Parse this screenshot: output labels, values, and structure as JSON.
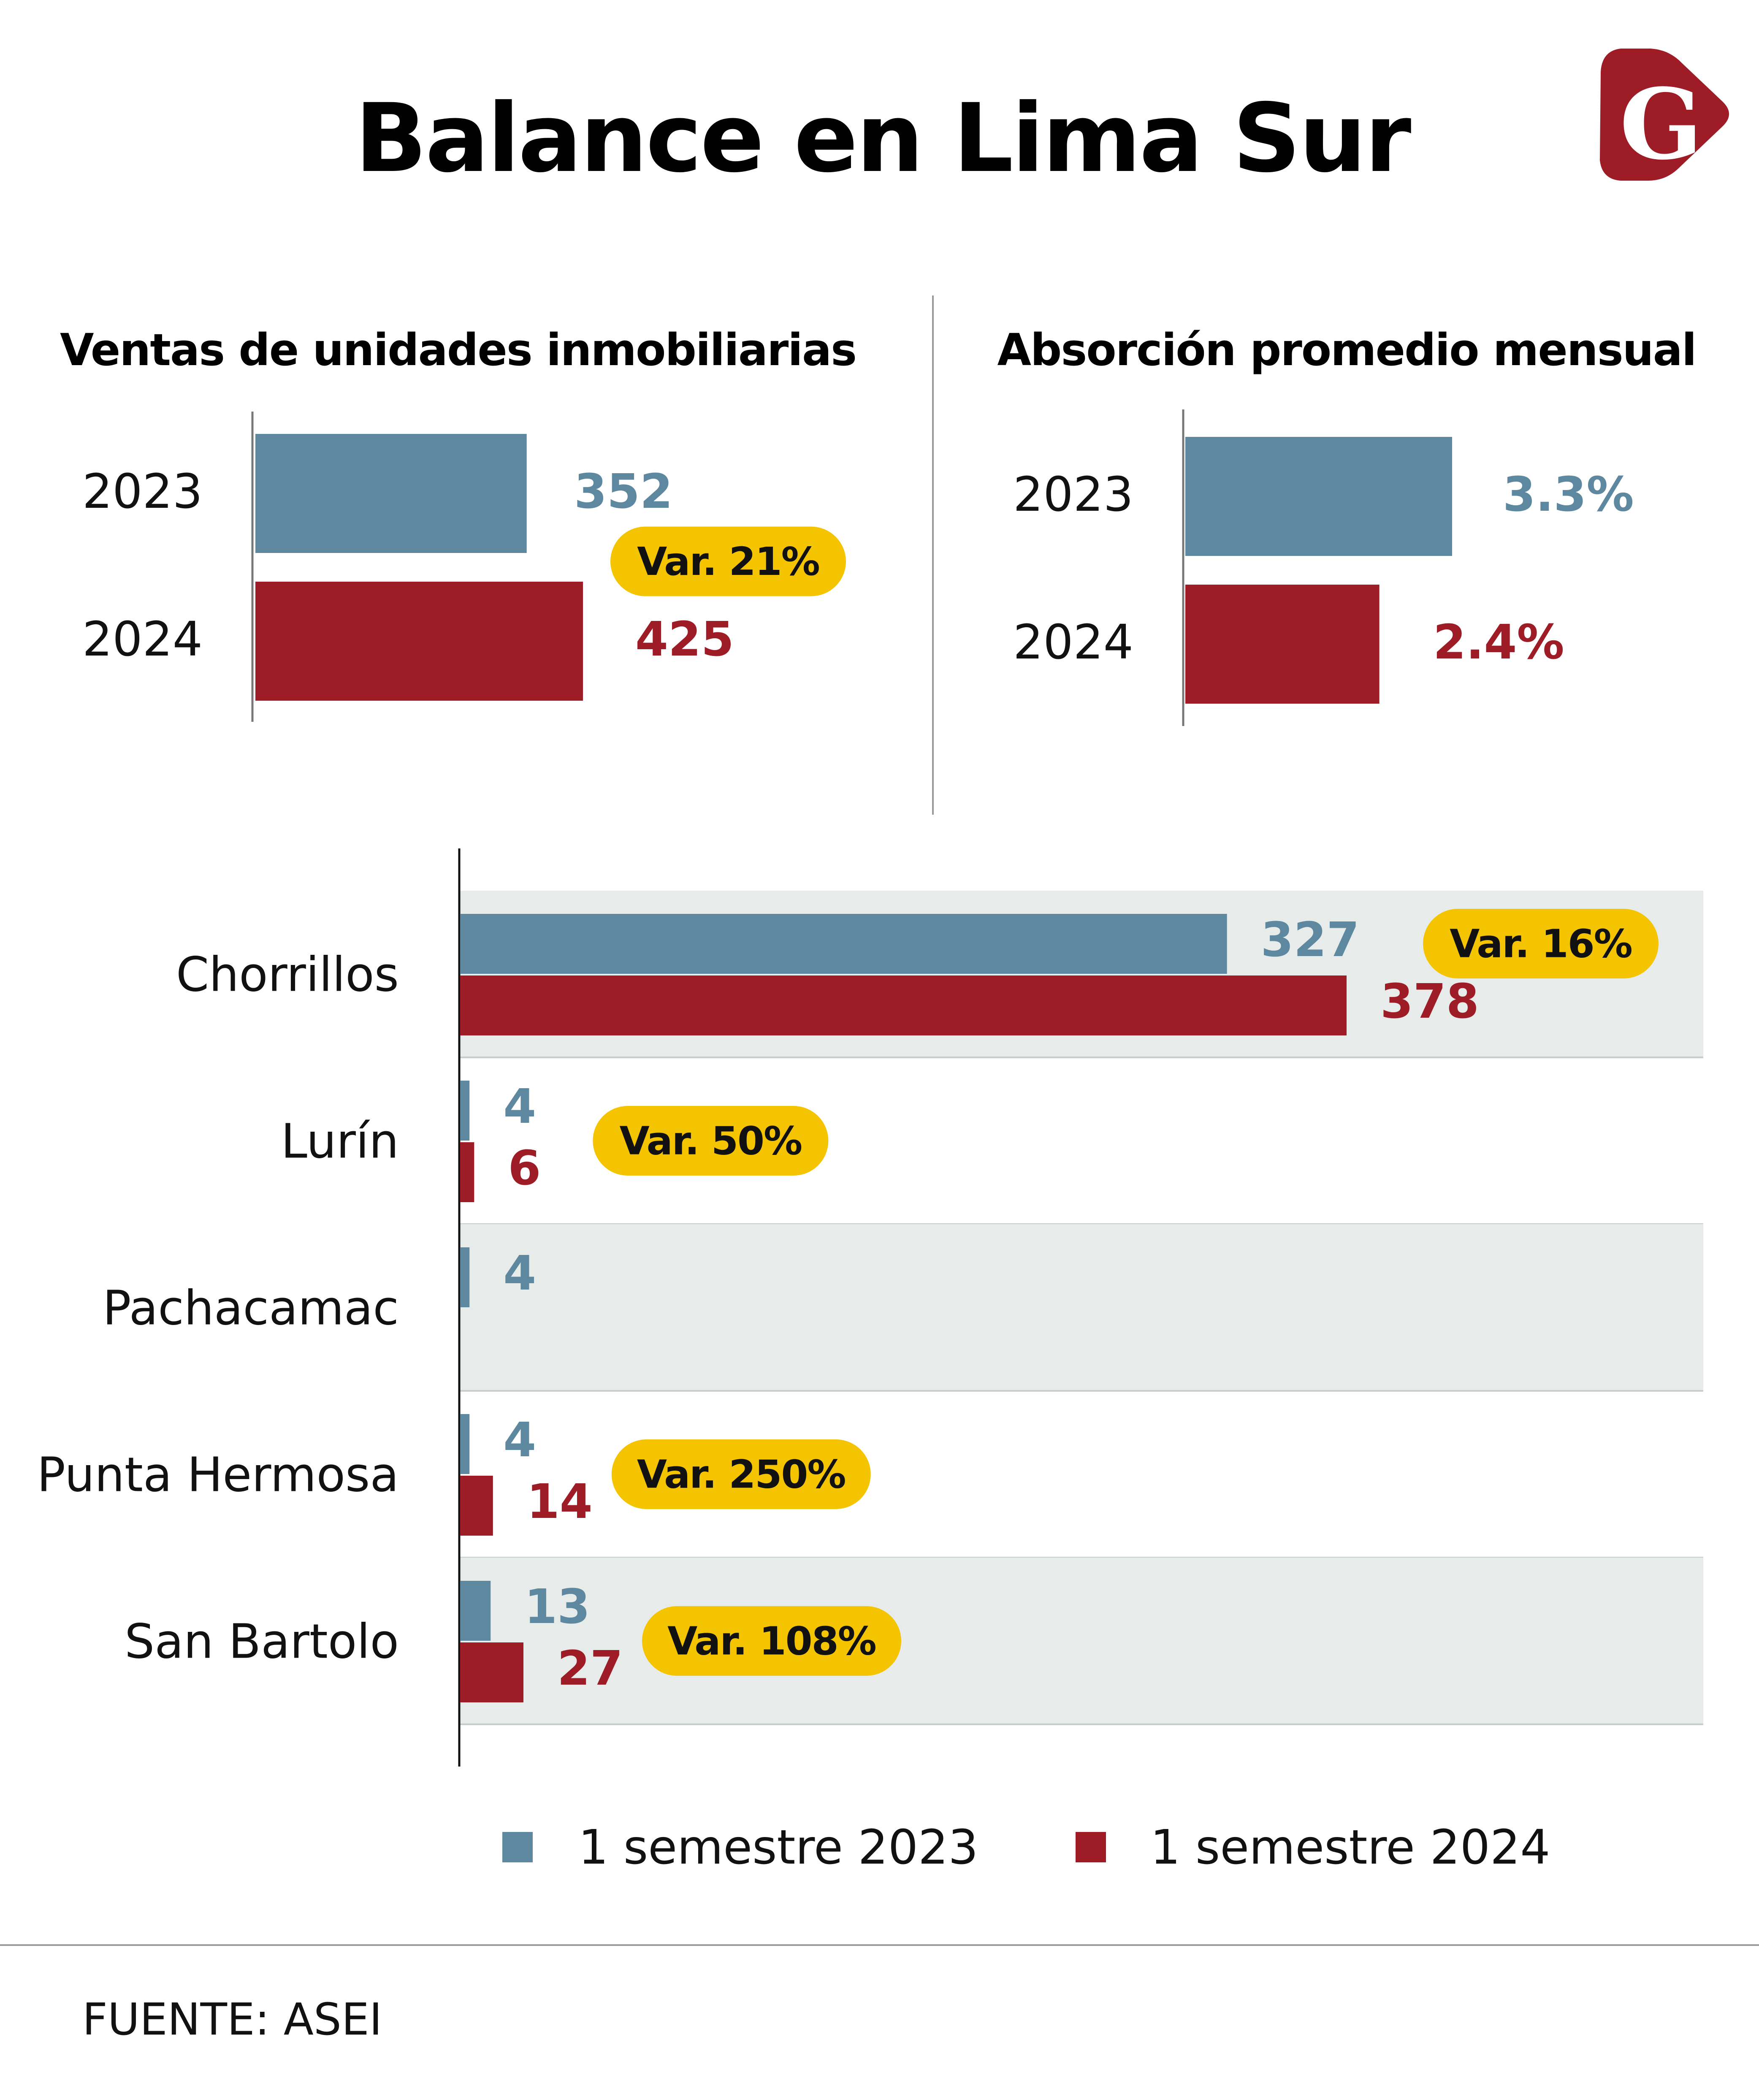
{
  "title": "Balance en Lima Sur",
  "logo_letter": "G",
  "colors": {
    "series_2023": "#5e889f",
    "series_2024": "#9d1c26",
    "badge": "#f5c400",
    "band": "#e7ecea",
    "logo": "#9d1c26"
  },
  "legend": [
    "1 semestre 2023",
    "1 semestre 2024"
  ],
  "source": "FUENTE: ASEI",
  "chart_data": [
    {
      "type": "bar",
      "orientation": "horizontal",
      "title": "Ventas de unidades inmobiliarias",
      "categories": [
        "2023",
        "2024"
      ],
      "values": [
        352,
        425
      ],
      "value_labels": [
        "352",
        "425"
      ],
      "variation_label": "Var. 21%",
      "xlim": [
        0,
        425
      ]
    },
    {
      "type": "bar",
      "orientation": "horizontal",
      "title": "Absorción promedio mensual",
      "categories": [
        "2023",
        "2024"
      ],
      "values": [
        3.3,
        2.4
      ],
      "value_labels": [
        "3.3%",
        "2.4%"
      ],
      "xlim": [
        0,
        3.3
      ]
    },
    {
      "type": "bar",
      "orientation": "horizontal",
      "title": "",
      "categories": [
        "Chorrillos",
        "Lurín",
        "Pachacamac",
        "Punta Hermosa",
        "San Bartolo"
      ],
      "series": [
        {
          "name": "1 semestre 2023",
          "values": [
            327,
            4,
            4,
            4,
            13
          ],
          "labels": [
            "327",
            "4",
            "4",
            "4",
            "13"
          ]
        },
        {
          "name": "1 semestre 2024",
          "values": [
            378,
            6,
            null,
            14,
            27
          ],
          "labels": [
            "378",
            "6",
            "",
            "14",
            "27"
          ]
        }
      ],
      "variation_labels": [
        "Var. 16%",
        "Var. 50%",
        "",
        "Var. 250%",
        "Var. 108%"
      ],
      "xlim": [
        0,
        378
      ]
    }
  ]
}
